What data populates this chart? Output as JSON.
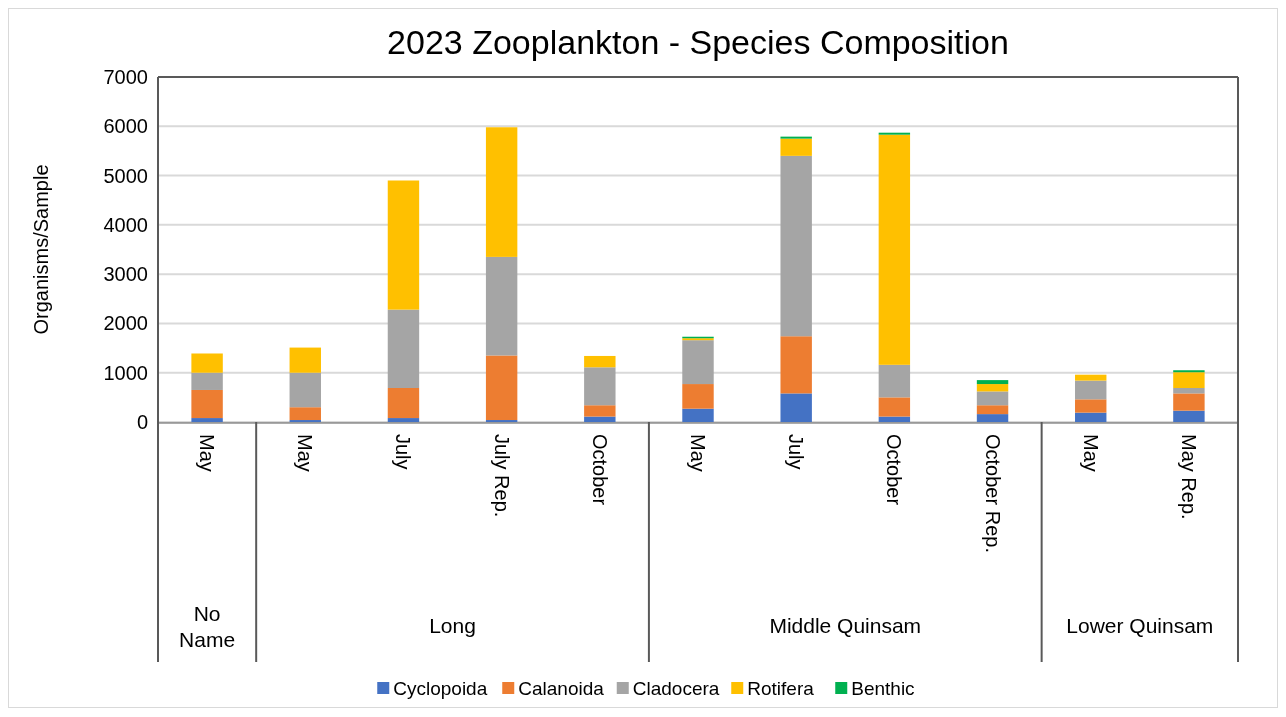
{
  "chart_data": {
    "type": "bar",
    "title": "2023 Zooplankton  - Species Composition",
    "ylabel": "Organisms/Sample",
    "categories": [
      "May",
      "May",
      "July",
      "July Rep.",
      "October",
      "May",
      "July",
      "October",
      "October Rep.",
      "May",
      "May Rep."
    ],
    "stacked": true,
    "ylim": [
      0,
      7000
    ],
    "yticks": [
      0,
      1000,
      2000,
      3000,
      4000,
      5000,
      6000,
      7000
    ],
    "grid": "y",
    "legend": "bottom",
    "annotations": [
      "No Name",
      "Long",
      "Middle Quinsam",
      "Lower Quinsam"
    ],
    "series": [
      {
        "name": "Cyclopoida",
        "color": "#4472c4",
        "values": [
          80,
          40,
          80,
          40,
          110,
          270,
          580,
          110,
          160,
          190,
          230
        ]
      },
      {
        "name": "Calanoida",
        "color": "#ed7d31",
        "values": [
          570,
          260,
          610,
          1310,
          230,
          500,
          1160,
          390,
          180,
          270,
          350
        ]
      },
      {
        "name": "Cladocera",
        "color": "#a5a5a5",
        "values": [
          350,
          700,
          1590,
          2000,
          770,
          890,
          3660,
          660,
          280,
          380,
          110
        ]
      },
      {
        "name": "Rotifera",
        "color": "#ffc000",
        "values": [
          390,
          510,
          2620,
          2630,
          230,
          40,
          350,
          4670,
          150,
          120,
          320
        ]
      },
      {
        "name": "Benthic",
        "color": "#00b050",
        "values": [
          0,
          0,
          0,
          0,
          0,
          30,
          40,
          40,
          80,
          0,
          40
        ]
      }
    ]
  }
}
